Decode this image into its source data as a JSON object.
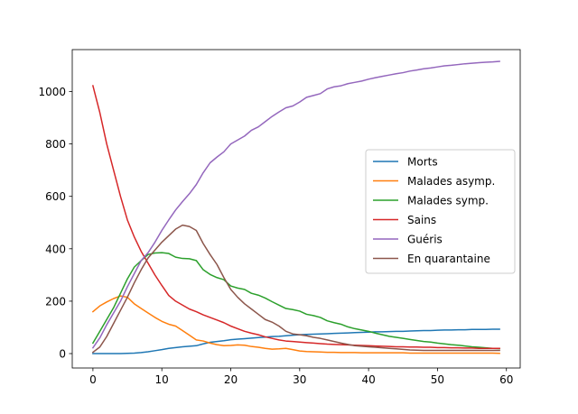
{
  "chart_data": {
    "type": "line",
    "title": "",
    "xlabel": "",
    "ylabel": "",
    "xlim": [
      -3,
      62
    ],
    "ylim": [
      -55,
      1160
    ],
    "xticks": [
      0,
      10,
      20,
      30,
      40,
      50,
      60
    ],
    "yticks": [
      0,
      200,
      400,
      600,
      800,
      1000
    ],
    "grid": false,
    "legend_position": "center-right",
    "x": [
      0,
      1,
      2,
      3,
      4,
      5,
      6,
      7,
      8,
      9,
      10,
      11,
      12,
      13,
      14,
      15,
      16,
      17,
      18,
      19,
      20,
      21,
      22,
      23,
      24,
      25,
      26,
      27,
      28,
      29,
      30,
      31,
      32,
      33,
      34,
      35,
      36,
      37,
      38,
      39,
      40,
      41,
      42,
      43,
      44,
      45,
      46,
      47,
      48,
      49,
      50,
      51,
      52,
      53,
      54,
      55,
      56,
      57,
      58,
      59
    ],
    "series": [
      {
        "name": "Morts",
        "color": "#1f77b4",
        "values": [
          0,
          0,
          0,
          0,
          0,
          1,
          2,
          4,
          7,
          11,
          15,
          20,
          23,
          26,
          28,
          30,
          37,
          43,
          46,
          49,
          53,
          55,
          57,
          59,
          61,
          63,
          65,
          66,
          68,
          70,
          72,
          73,
          74,
          75,
          76,
          77,
          78,
          79,
          80,
          81,
          82,
          83,
          83,
          84,
          85,
          85,
          86,
          87,
          88,
          88,
          89,
          90,
          90,
          91,
          91,
          92,
          92,
          92,
          93,
          93
        ]
      },
      {
        "name": "Malades asymp.",
        "color": "#ff7f0e",
        "values": [
          160,
          182,
          197,
          210,
          220,
          215,
          190,
          172,
          155,
          138,
          123,
          112,
          105,
          88,
          70,
          52,
          48,
          40,
          34,
          30,
          31,
          33,
          32,
          27,
          24,
          20,
          17,
          18,
          20,
          15,
          10,
          8,
          7,
          6,
          5,
          5,
          4,
          4,
          4,
          3,
          3,
          3,
          3,
          3,
          3,
          3,
          2,
          2,
          2,
          2,
          2,
          2,
          2,
          2,
          2,
          2,
          2,
          2,
          2,
          1
        ]
      },
      {
        "name": "Malades symp.",
        "color": "#2ca02c",
        "values": [
          40,
          85,
          130,
          175,
          230,
          285,
          330,
          355,
          378,
          384,
          385,
          382,
          368,
          363,
          362,
          355,
          320,
          302,
          290,
          282,
          258,
          250,
          245,
          230,
          223,
          212,
          198,
          185,
          172,
          168,
          162,
          150,
          145,
          138,
          125,
          118,
          112,
          102,
          95,
          90,
          85,
          78,
          72,
          66,
          62,
          58,
          54,
          50,
          46,
          44,
          40,
          37,
          34,
          32,
          29,
          26,
          24,
          22,
          20,
          19
        ]
      },
      {
        "name": "Sains",
        "color": "#d62728",
        "values": [
          1022,
          920,
          800,
          700,
          600,
          510,
          445,
          390,
          345,
          300,
          260,
          222,
          200,
          185,
          170,
          160,
          148,
          138,
          128,
          118,
          105,
          95,
          85,
          78,
          72,
          64,
          58,
          52,
          48,
          46,
          44,
          42,
          40,
          38,
          36,
          35,
          34,
          33,
          32,
          31,
          30,
          29,
          28,
          27,
          26,
          26,
          25,
          25,
          24,
          24,
          23,
          23,
          22,
          22,
          21,
          21,
          20,
          20,
          20,
          20
        ]
      },
      {
        "name": "Guéris",
        "color": "#9467bd",
        "values": [
          22,
          60,
          110,
          155,
          200,
          255,
          305,
          355,
          385,
          425,
          470,
          510,
          548,
          580,
          610,
          645,
          690,
          728,
          750,
          770,
          800,
          815,
          830,
          852,
          865,
          885,
          905,
          922,
          938,
          945,
          960,
          978,
          985,
          992,
          1010,
          1018,
          1022,
          1030,
          1035,
          1040,
          1047,
          1053,
          1058,
          1063,
          1068,
          1072,
          1078,
          1082,
          1087,
          1090,
          1094,
          1098,
          1100,
          1103,
          1106,
          1108,
          1110,
          1112,
          1113,
          1115
        ]
      },
      {
        "name": "En quarantaine",
        "color": "#8c564b",
        "values": [
          5,
          25,
          65,
          115,
          165,
          215,
          270,
          320,
          365,
          395,
          425,
          450,
          475,
          490,
          485,
          470,
          420,
          378,
          340,
          290,
          245,
          215,
          190,
          170,
          150,
          130,
          120,
          105,
          85,
          75,
          72,
          68,
          62,
          58,
          52,
          46,
          40,
          35,
          30,
          28,
          26,
          24,
          22,
          20,
          18,
          16,
          14,
          13,
          12,
          12,
          12,
          12,
          12,
          12,
          12,
          12,
          12,
          12,
          12,
          12
        ]
      }
    ]
  }
}
